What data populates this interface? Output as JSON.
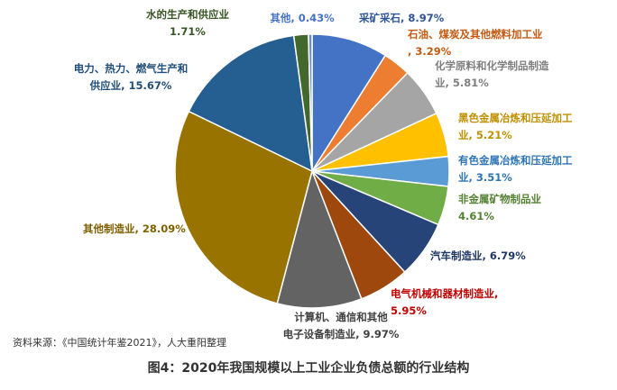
{
  "chart_data": {
    "type": "pie",
    "slices": [
      {
        "label": "采矿采石",
        "value": 8.97,
        "value_label": "8.97%",
        "color": "#4472C4",
        "label_color": "#2F5597"
      },
      {
        "label": "石油、煤炭及其他燃料加工业",
        "value": 3.29,
        "value_label": "3.29%",
        "color": "#ED7D31",
        "label_color": "#C55A11"
      },
      {
        "label": "化学原料和化学制品制造业",
        "value": 5.81,
        "value_label": "5.81%",
        "color": "#A5A5A5",
        "label_color": "#7F7F7F"
      },
      {
        "label": "黑色金属冶炼和压延加工业",
        "value": 5.21,
        "value_label": "5.21%",
        "color": "#FFC000",
        "label_color": "#BF9000"
      },
      {
        "label": "有色金属冶炼和压延加工业",
        "value": 3.51,
        "value_label": "3.51%",
        "color": "#5B9BD5",
        "label_color": "#2E75B6"
      },
      {
        "label": "非金属矿物制品业",
        "value": 4.61,
        "value_label": "4.61%",
        "color": "#70AD47",
        "label_color": "#548235"
      },
      {
        "label": "汽车制造业",
        "value": 6.79,
        "value_label": "6.79%",
        "color": "#264478",
        "label_color": "#1F3864"
      },
      {
        "label": "电气机械和器材制造业",
        "value": 5.95,
        "value_label": "5.95%",
        "color": "#9E480E",
        "label_color": "#C00000"
      },
      {
        "label": "计算机、通信和其他电子设备制造业",
        "value": 9.97,
        "value_label": "9.97%",
        "color": "#636363",
        "label_color": "#404040"
      },
      {
        "label": "其他制造业",
        "value": 28.09,
        "value_label": "28.09%",
        "color": "#997300",
        "label_color": "#806000"
      },
      {
        "label": "电力、热力、燃气生产和供应业",
        "value": 15.67,
        "value_label": "15.67%",
        "color": "#255E91",
        "label_color": "#1F4E79"
      },
      {
        "label": "水的生产和供应业",
        "value": 1.71,
        "value_label": "1.71%",
        "color": "#43682B",
        "label_color": "#375623"
      },
      {
        "label": "其他",
        "value": 0.43,
        "value_label": "0.43%",
        "color": "#698ED0",
        "label_color": "#4472C4"
      }
    ]
  },
  "source_note": "资料来源：《中国统计年鉴2021》，人大重阳整理",
  "caption": "图4：2020年我国规模以上工业企业负债总额的行业结构"
}
